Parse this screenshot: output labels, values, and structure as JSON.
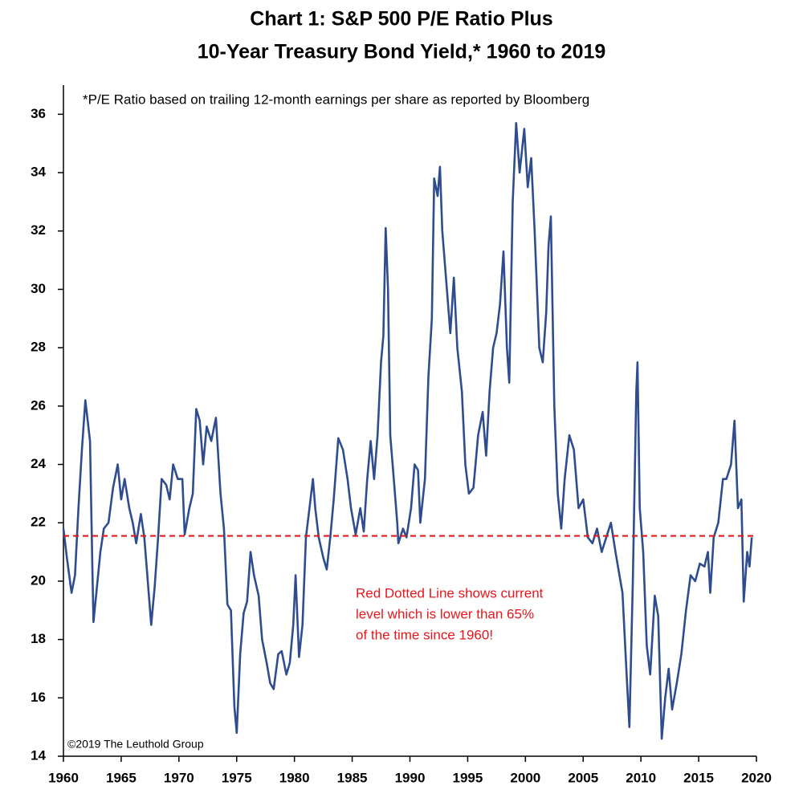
{
  "chart_data": {
    "type": "line",
    "title": [
      "Chart 1: S&P 500 P/E Ratio Plus",
      "10-Year Treasury Bond Yield,* 1960 to 2019"
    ],
    "subtitle": "*P/E Ratio based on trailing 12-month earnings per share as reported by Bloomberg",
    "annotation": [
      "Red Dotted Line shows current",
      "level which is lower than 65%",
      "of the time since 1960!"
    ],
    "credit": "©2019 The Leuthold Group",
    "reference_line": {
      "value": 21.55,
      "color": "#e8171d"
    },
    "xlim": [
      1960,
      2020
    ],
    "xticks": [
      1960,
      1965,
      1970,
      1975,
      1980,
      1985,
      1990,
      1995,
      2000,
      2005,
      2010,
      2015,
      2020
    ],
    "ylim": [
      14,
      37
    ],
    "yticks": [
      14,
      16,
      18,
      20,
      22,
      24,
      26,
      28,
      30,
      32,
      34,
      36
    ],
    "series": [
      {
        "color": "#2f4d8e",
        "x": [
          1960.0,
          1960.3,
          1960.7,
          1961.0,
          1961.3,
          1961.6,
          1961.9,
          1962.1,
          1962.3,
          1962.5,
          1962.6,
          1962.9,
          1963.2,
          1963.5,
          1963.9,
          1964.3,
          1964.7,
          1965.0,
          1965.3,
          1965.7,
          1966.0,
          1966.3,
          1966.7,
          1967.0,
          1967.2,
          1967.6,
          1967.9,
          1968.2,
          1968.5,
          1968.9,
          1969.2,
          1969.5,
          1969.9,
          1970.3,
          1970.5,
          1970.9,
          1971.2,
          1971.5,
          1971.8,
          1972.1,
          1972.4,
          1972.8,
          1973.2,
          1973.6,
          1973.9,
          1974.2,
          1974.5,
          1974.8,
          1975.0,
          1975.3,
          1975.6,
          1975.9,
          1976.2,
          1976.5,
          1976.9,
          1977.2,
          1977.6,
          1977.9,
          1978.2,
          1978.6,
          1978.9,
          1979.3,
          1979.6,
          1979.9,
          1980.1,
          1980.4,
          1980.7,
          1981.0,
          1981.3,
          1981.6,
          1981.8,
          1982.1,
          1982.5,
          1982.8,
          1983.1,
          1983.4,
          1983.8,
          1984.2,
          1984.6,
          1984.9,
          1985.3,
          1985.7,
          1986.0,
          1986.3,
          1986.6,
          1986.9,
          1987.2,
          1987.5,
          1987.7,
          1987.9,
          1988.1,
          1988.3,
          1988.6,
          1988.9,
          1989.0,
          1989.4,
          1989.7,
          1990.1,
          1990.4,
          1990.7,
          1990.9,
          1991.3,
          1991.6,
          1991.9,
          1992.1,
          1992.4,
          1992.6,
          1992.8,
          1993.1,
          1993.5,
          1993.8,
          1994.1,
          1994.5,
          1994.8,
          1995.1,
          1995.5,
          1995.9,
          1996.3,
          1996.6,
          1996.9,
          1997.2,
          1997.5,
          1997.8,
          1998.1,
          1998.4,
          1998.6,
          1998.9,
          1999.2,
          1999.5,
          1999.9,
          2000.2,
          2000.5,
          2000.8,
          2001.2,
          2001.5,
          2001.8,
          2002.0,
          2002.2,
          2002.5,
          2002.8,
          2003.1,
          2003.4,
          2003.8,
          2004.2,
          2004.6,
          2005.0,
          2005.4,
          2005.8,
          2006.2,
          2006.6,
          2007.0,
          2007.4,
          2007.8,
          2008.1,
          2008.4,
          2008.8,
          2009.0,
          2009.3,
          2009.6,
          2009.7,
          2009.9,
          2010.2,
          2010.5,
          2010.8,
          2011.2,
          2011.5,
          2011.8,
          2012.1,
          2012.4,
          2012.7,
          2013.1,
          2013.5,
          2013.9,
          2014.3,
          2014.7,
          2015.1,
          2015.5,
          2015.8,
          2016.0,
          2016.3,
          2016.7,
          2017.1,
          2017.4,
          2017.8,
          2018.1,
          2018.4,
          2018.7,
          2018.9,
          2019.2,
          2019.4,
          2019.6
        ],
        "values": [
          21.8,
          20.8,
          19.6,
          20.2,
          22.5,
          24.5,
          26.2,
          25.5,
          24.8,
          20.5,
          18.6,
          19.8,
          21.0,
          21.8,
          22.0,
          23.2,
          24.0,
          22.8,
          23.5,
          22.5,
          22.0,
          21.3,
          22.3,
          21.5,
          20.5,
          18.5,
          19.8,
          21.5,
          23.5,
          23.3,
          22.8,
          24.0,
          23.5,
          23.5,
          21.6,
          22.5,
          23.0,
          25.9,
          25.5,
          24.0,
          25.3,
          24.8,
          25.6,
          23.0,
          21.8,
          19.2,
          19.0,
          15.7,
          14.8,
          17.5,
          18.9,
          19.3,
          21.0,
          20.2,
          19.5,
          18.0,
          17.2,
          16.5,
          16.3,
          17.5,
          17.6,
          16.8,
          17.2,
          18.5,
          20.2,
          17.4,
          18.5,
          21.5,
          22.5,
          23.5,
          22.5,
          21.5,
          20.8,
          20.4,
          21.5,
          22.8,
          24.9,
          24.5,
          23.5,
          22.5,
          21.6,
          22.5,
          21.7,
          23.5,
          24.8,
          23.5,
          25.0,
          27.5,
          28.4,
          32.1,
          30.0,
          25.0,
          23.5,
          22.0,
          21.3,
          21.8,
          21.5,
          22.5,
          24.0,
          23.8,
          22.0,
          23.5,
          27.0,
          29.0,
          33.8,
          33.2,
          34.2,
          32.0,
          30.5,
          28.5,
          30.4,
          28.0,
          26.5,
          24.0,
          23.0,
          23.2,
          25.0,
          25.8,
          24.3,
          26.5,
          28.0,
          28.5,
          29.5,
          31.3,
          28.0,
          26.8,
          33.0,
          35.7,
          34.0,
          35.5,
          33.5,
          34.5,
          32.0,
          28.0,
          27.5,
          29.2,
          31.5,
          32.5,
          26.0,
          23.0,
          21.8,
          23.5,
          25.0,
          24.5,
          22.5,
          22.8,
          21.5,
          21.3,
          21.8,
          21.0,
          21.5,
          22.0,
          21.0,
          20.3,
          19.6,
          16.5,
          15.0,
          20.0,
          26.5,
          27.5,
          22.5,
          21.0,
          17.8,
          16.8,
          19.5,
          18.8,
          14.6,
          16.0,
          17.0,
          15.6,
          16.5,
          17.5,
          19.0,
          20.2,
          20.0,
          20.6,
          20.5,
          21.0,
          19.6,
          21.5,
          22.0,
          23.5,
          23.5,
          24.0,
          25.5,
          22.5,
          22.8,
          19.3,
          21.0,
          20.5,
          21.5
        ]
      }
    ]
  }
}
